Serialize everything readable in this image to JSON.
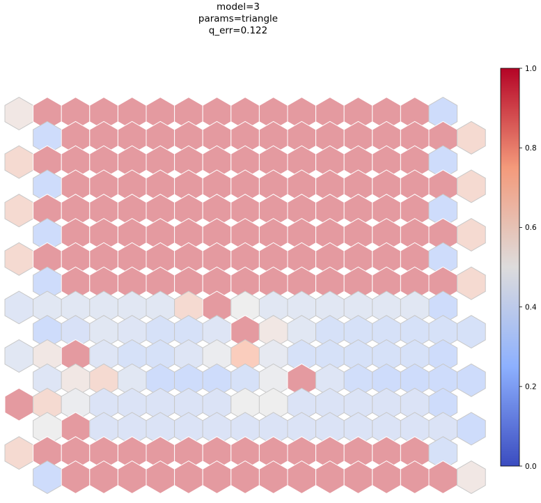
{
  "chart_data": {
    "type": "heatmap",
    "subtype": "hexagonal-som-map",
    "title_lines": [
      "model=3",
      "params=triangle",
      "q_err=0.122"
    ],
    "colormap": "coolwarm",
    "colorbar": {
      "range": [
        0.0,
        1.0
      ],
      "ticks": [
        0.0,
        0.2,
        0.4,
        0.6,
        0.8,
        1.0
      ],
      "tick_labels": [
        "0.0",
        "0.2",
        "0.4",
        "0.6",
        "0.8",
        "1.0"
      ]
    },
    "grid": {
      "rows": 16,
      "cols": 17,
      "cell_alpha": 0.5
    },
    "values": [
      [
        0.55,
        0.92,
        0.92,
        0.92,
        0.92,
        0.92,
        0.92,
        0.92,
        0.92,
        0.92,
        0.92,
        0.92,
        0.92,
        0.92,
        0.92,
        0.3,
        null
      ],
      [
        null,
        0.3,
        0.92,
        0.92,
        0.92,
        0.92,
        0.92,
        0.92,
        0.92,
        0.92,
        0.92,
        0.92,
        0.92,
        0.92,
        0.92,
        0.92,
        0.65
      ],
      [
        0.65,
        0.92,
        0.92,
        0.92,
        0.92,
        0.92,
        0.92,
        0.92,
        0.92,
        0.92,
        0.92,
        0.92,
        0.92,
        0.92,
        0.92,
        0.3,
        null
      ],
      [
        null,
        0.3,
        0.92,
        0.92,
        0.92,
        0.92,
        0.92,
        0.92,
        0.92,
        0.92,
        0.92,
        0.92,
        0.92,
        0.92,
        0.92,
        0.92,
        0.65
      ],
      [
        0.65,
        0.92,
        0.92,
        0.92,
        0.92,
        0.92,
        0.92,
        0.92,
        0.92,
        0.92,
        0.92,
        0.92,
        0.92,
        0.92,
        0.92,
        0.3,
        null
      ],
      [
        null,
        0.3,
        0.92,
        0.92,
        0.92,
        0.92,
        0.92,
        0.92,
        0.92,
        0.92,
        0.92,
        0.92,
        0.92,
        0.92,
        0.92,
        0.92,
        0.65
      ],
      [
        0.65,
        0.92,
        0.92,
        0.92,
        0.92,
        0.92,
        0.92,
        0.92,
        0.92,
        0.92,
        0.92,
        0.92,
        0.92,
        0.92,
        0.92,
        0.3,
        null
      ],
      [
        null,
        0.3,
        0.92,
        0.92,
        0.92,
        0.92,
        0.92,
        0.92,
        0.92,
        0.92,
        0.92,
        0.92,
        0.92,
        0.92,
        0.92,
        0.92,
        0.65
      ],
      [
        0.4,
        0.42,
        0.42,
        0.42,
        0.42,
        0.42,
        0.65,
        0.92,
        0.5,
        0.42,
        0.42,
        0.42,
        0.42,
        0.42,
        0.42,
        0.3,
        null
      ],
      [
        null,
        0.3,
        0.36,
        0.42,
        0.4,
        0.35,
        0.35,
        0.4,
        0.92,
        0.55,
        0.42,
        0.35,
        0.35,
        0.35,
        0.35,
        0.35,
        0.35
      ],
      [
        0.42,
        0.55,
        0.92,
        0.4,
        0.35,
        0.35,
        0.4,
        0.48,
        0.75,
        0.45,
        0.35,
        0.35,
        0.35,
        0.35,
        0.35,
        0.3,
        null
      ],
      [
        null,
        0.4,
        0.55,
        0.65,
        0.42,
        0.3,
        0.3,
        0.3,
        0.35,
        0.48,
        0.92,
        0.4,
        0.32,
        0.3,
        0.3,
        0.3,
        0.3
      ],
      [
        0.92,
        0.65,
        0.48,
        0.38,
        0.38,
        0.38,
        0.38,
        0.38,
        0.5,
        0.5,
        0.38,
        0.38,
        0.38,
        0.38,
        0.38,
        0.3,
        null
      ],
      [
        null,
        0.5,
        0.92,
        0.38,
        0.38,
        0.38,
        0.38,
        0.38,
        0.38,
        0.38,
        0.38,
        0.38,
        0.38,
        0.38,
        0.38,
        0.38,
        0.3
      ],
      [
        0.65,
        0.92,
        0.92,
        0.92,
        0.92,
        0.92,
        0.92,
        0.92,
        0.92,
        0.92,
        0.92,
        0.92,
        0.92,
        0.92,
        0.92,
        0.35,
        null
      ],
      [
        null,
        0.3,
        0.92,
        0.92,
        0.92,
        0.92,
        0.92,
        0.92,
        0.92,
        0.92,
        0.92,
        0.92,
        0.92,
        0.92,
        0.92,
        0.92,
        0.55
      ]
    ]
  }
}
